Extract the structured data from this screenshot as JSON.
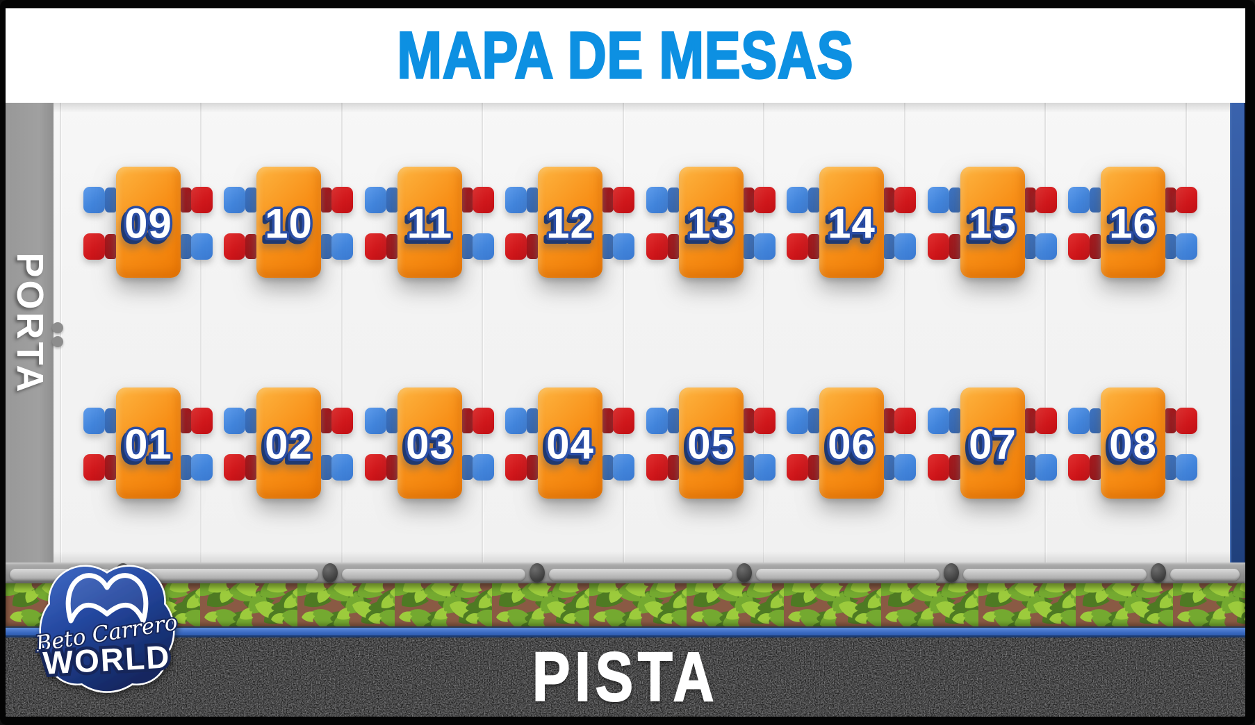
{
  "header": {
    "title": "MAPA DE MESAS"
  },
  "sidebar": {
    "label": "PORTA"
  },
  "tables": {
    "top_row": [
      "09",
      "10",
      "11",
      "12",
      "13",
      "14",
      "15",
      "16"
    ],
    "bottom_row": [
      "01",
      "02",
      "03",
      "04",
      "05",
      "06",
      "07",
      "08"
    ],
    "chair_colors": {
      "left_top": "blue",
      "left_bottom": "red",
      "right_top": "red",
      "right_bottom": "blue"
    },
    "seats_per_table": 4
  },
  "track": {
    "label": "PISTA"
  },
  "logo": {
    "line1": "Beto Carrero",
    "line2": "WORLD"
  },
  "colors": {
    "title_blue": "#0d90e2",
    "table_orange": "#f6880e",
    "chair_blue": "#4589de",
    "chair_red": "#d2191d",
    "sidebar_gray": "#9c9c9c",
    "floor_light": "#f4f4f4",
    "right_wall_blue": "#2d5093",
    "rail_gray": "#9a9a9a",
    "hedge_green": "#74a930",
    "soil_brown": "#8a5a44",
    "barrier_blue": "#3b6fc8",
    "asphalt_dark": "#1c1c1c",
    "number_outline": "#2a4da4"
  }
}
